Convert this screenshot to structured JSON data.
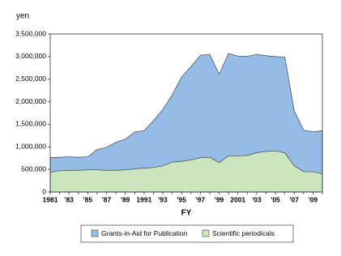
{
  "chart_data": {
    "type": "area",
    "y_label": "yen",
    "x_label": "FY",
    "categories": [
      "1981",
      null,
      "'83",
      null,
      "'85",
      null,
      "'87",
      null,
      "'89",
      null,
      "1991",
      null,
      "'93",
      null,
      "'95",
      null,
      "'97",
      null,
      "'99",
      null,
      "2001",
      null,
      "'03",
      null,
      "'05",
      null,
      "'07",
      null,
      "'09",
      null
    ],
    "series": [
      {
        "name": "Grants-in-Aid for Publication",
        "color": "#94bce6",
        "values": [
          760000,
          770000,
          780000,
          770000,
          780000,
          940000,
          990000,
          1100000,
          1170000,
          1330000,
          1360000,
          1580000,
          1830000,
          2150000,
          2550000,
          2780000,
          3030000,
          3050000,
          2610000,
          3070000,
          3010000,
          3010000,
          3050000,
          3020000,
          3000000,
          2990000,
          1800000,
          1370000,
          1330000,
          1360000
        ]
      },
      {
        "name": "Scientific periodicals",
        "color": "#cbe6bf",
        "values": [
          440000,
          470000,
          480000,
          480000,
          490000,
          490000,
          480000,
          480000,
          490000,
          510000,
          530000,
          540000,
          580000,
          660000,
          680000,
          710000,
          760000,
          770000,
          650000,
          800000,
          800000,
          810000,
          870000,
          900000,
          910000,
          870000,
          580000,
          450000,
          450000,
          400000
        ]
      }
    ],
    "ylim": [
      0,
      3500000
    ],
    "yticks": [
      0,
      {
        "value": 500000,
        "label": "500,000"
      },
      {
        "value": 1000000,
        "label": "1,000,000"
      },
      {
        "value": 1500000,
        "label": "1,500,000"
      },
      {
        "value": 2000000,
        "label": "2,000,000"
      },
      {
        "value": 2500000,
        "label": "2,500,000"
      },
      {
        "value": 3000000,
        "label": "3,000,000"
      },
      {
        "value": 3500000,
        "label": "3,500,000"
      }
    ],
    "legend": "bottom"
  }
}
